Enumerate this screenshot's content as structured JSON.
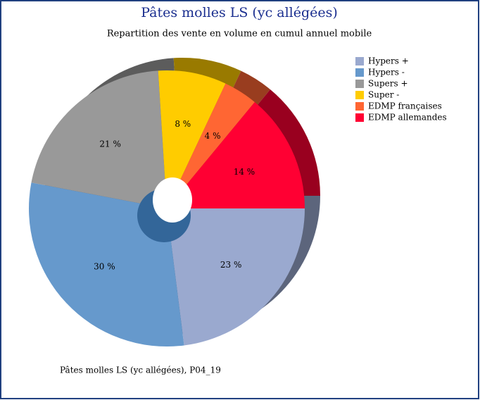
{
  "chart_data": {
    "type": "pie",
    "title": "Pâtes molles LS (yc allégées)",
    "subtitle": "Repartition des vente en volume en cumul annuel mobile",
    "note": "Pâtes molles LS (yc allégées), P04_19",
    "categories": [
      "Hypers +",
      "Hypers -",
      "Supers +",
      "Super -",
      "EDMP françaises",
      "EDMP allemandes"
    ],
    "values": [
      23,
      30,
      21,
      8,
      4,
      14
    ],
    "value_labels": [
      "23 %",
      "30 %",
      "21 %",
      "8 %",
      "4 %",
      "14 %"
    ],
    "colors": [
      "#9aa9cf",
      "#6699cc",
      "#999999",
      "#ffcc00",
      "#ff6633",
      "#ff0033"
    ],
    "legend": "right"
  }
}
